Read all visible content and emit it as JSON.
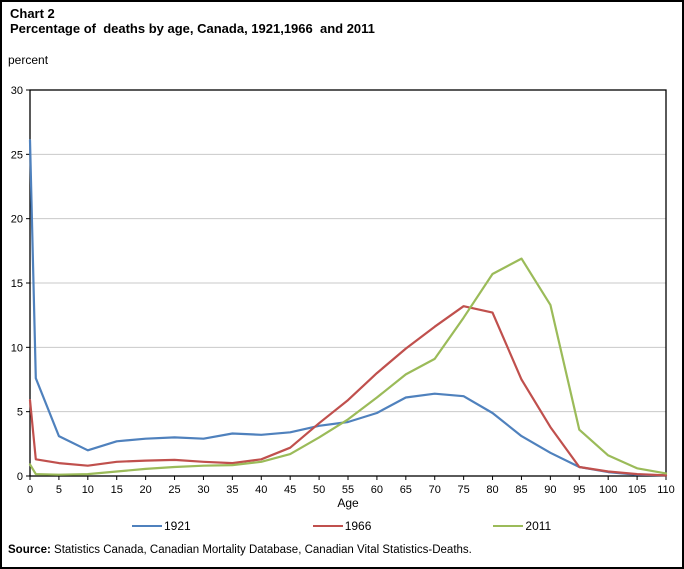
{
  "page": {
    "title_line1": "Chart 2",
    "title_line2": "Percentage of  deaths by age, Canada, 1921,1966  and 2011"
  },
  "chart_data": {
    "type": "line",
    "title": "Percentage of deaths by age, Canada, 1921, 1966 and 2011",
    "xlabel": "Age",
    "ylabel": "percent",
    "xlim": [
      0,
      110
    ],
    "ylim": [
      0,
      30
    ],
    "x_ticks": [
      0,
      5,
      10,
      15,
      20,
      25,
      30,
      35,
      40,
      45,
      50,
      55,
      60,
      65,
      70,
      75,
      80,
      85,
      90,
      95,
      100,
      105,
      110
    ],
    "y_ticks": [
      0,
      5,
      10,
      15,
      20,
      25,
      30
    ],
    "grid": "horizontal",
    "grid_color": "#C9C9C9",
    "axis_color": "#000000",
    "legend_position": "bottom",
    "x": [
      0,
      1,
      5,
      10,
      15,
      20,
      25,
      30,
      35,
      40,
      45,
      50,
      55,
      60,
      65,
      70,
      75,
      80,
      85,
      90,
      95,
      100,
      105,
      110
    ],
    "series": [
      {
        "name": "1921",
        "color": "#4F81BD",
        "values": [
          26.1,
          7.6,
          3.1,
          2.0,
          2.7,
          2.9,
          3.0,
          2.9,
          3.3,
          3.2,
          3.4,
          3.9,
          4.2,
          4.9,
          6.1,
          6.4,
          6.2,
          4.9,
          3.1,
          1.8,
          0.7,
          0.3,
          0.1,
          0.05
        ]
      },
      {
        "name": "1966",
        "color": "#C0504D",
        "values": [
          5.9,
          1.3,
          1.0,
          0.8,
          1.1,
          1.2,
          1.25,
          1.1,
          1.0,
          1.3,
          2.2,
          4.1,
          5.9,
          8.0,
          9.9,
          11.6,
          13.2,
          12.7,
          7.5,
          3.8,
          0.7,
          0.35,
          0.15,
          0.05
        ]
      },
      {
        "name": "2011",
        "color": "#9BBB59",
        "values": [
          0.9,
          0.15,
          0.1,
          0.15,
          0.35,
          0.55,
          0.7,
          0.8,
          0.85,
          1.1,
          1.7,
          3.0,
          4.4,
          6.1,
          7.9,
          9.1,
          12.3,
          15.7,
          16.9,
          13.3,
          3.6,
          1.6,
          0.6,
          0.2
        ]
      }
    ]
  },
  "footer": {
    "source_label": "Source:",
    "source_text": " Statistics Canada, Canadian Mortality Database, Canadian Vital Statistics-Deaths."
  }
}
